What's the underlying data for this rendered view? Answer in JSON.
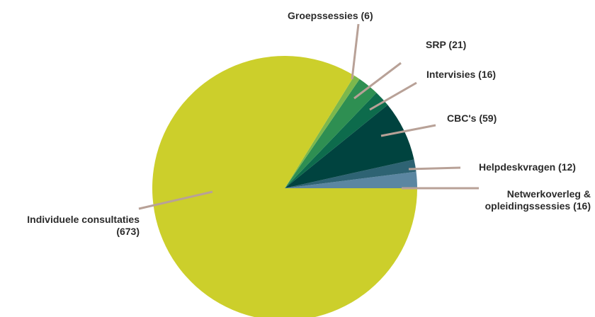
{
  "chart_data": {
    "type": "pie",
    "title": "",
    "start_angle_deg": 0,
    "direction": "counterclockwise",
    "leader_line_color": "#b8a197",
    "slices": [
      {
        "label": [
          "Netwerkoverleg &",
          "opleidingssessies (16)"
        ],
        "value": 16,
        "color": "#5b86a1"
      },
      {
        "label": [
          "Helpdeskvragen (12)"
        ],
        "value": 12,
        "color": "#2e6373"
      },
      {
        "label": [
          "CBC's (59)"
        ],
        "value": 59,
        "color": "#00433f"
      },
      {
        "label": [
          "Intervisies (16)"
        ],
        "value": 16,
        "color": "#0d6b4c"
      },
      {
        "label": [
          "SRP (21)"
        ],
        "value": 21,
        "color": "#2e8f52"
      },
      {
        "label": [
          "Groepssessies (6)"
        ],
        "value": 6,
        "color": "#7cb84c"
      },
      {
        "label": [
          "Individuele consultaties",
          "(673)"
        ],
        "value": 673,
        "color": "#cccf2b"
      }
    ]
  }
}
